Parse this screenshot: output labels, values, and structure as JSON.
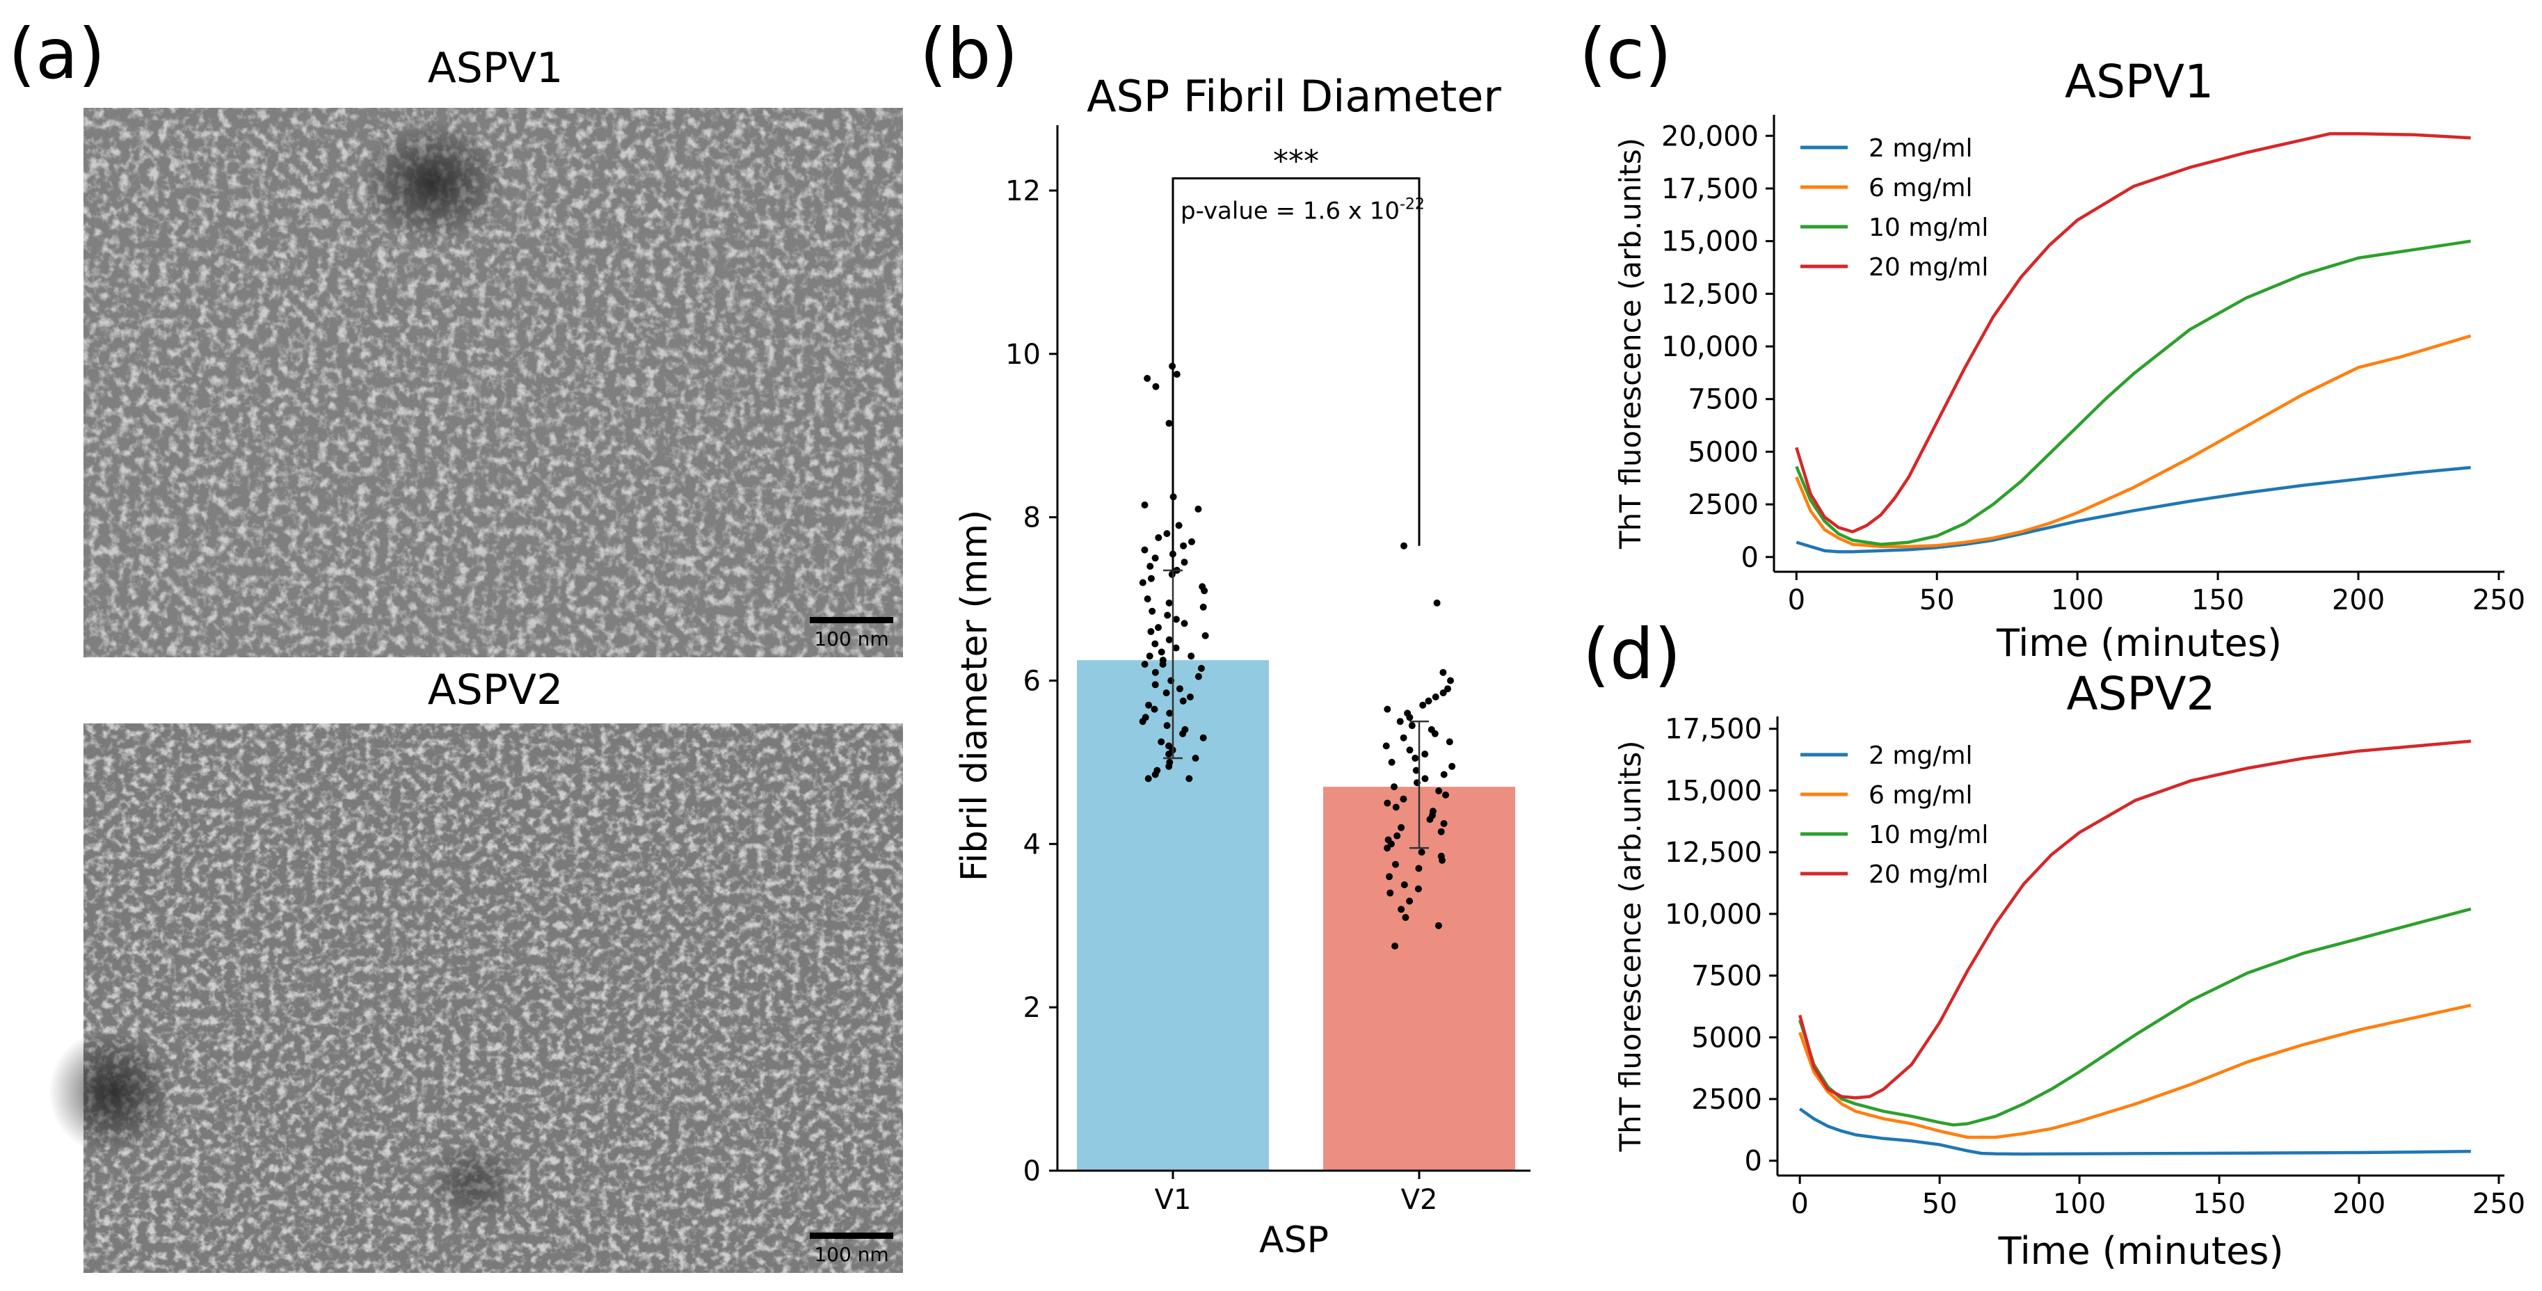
{
  "panels": {
    "a": {
      "letter": "(a)",
      "top": {
        "title": "ASPV1",
        "scale_bar": "100 nm"
      },
      "bottom": {
        "title": "ASPV2",
        "scale_bar": "100 nm"
      }
    },
    "b": {
      "letter": "(b)"
    },
    "c": {
      "letter": "(c)"
    },
    "d": {
      "letter": "(d)"
    }
  },
  "chart_data": [
    {
      "id": "b",
      "type": "bar",
      "title": "ASP Fibril Diameter",
      "xlabel": "ASP",
      "ylabel": "Fibril diameter (mm)",
      "categories": [
        "V1",
        "V2"
      ],
      "values": [
        6.25,
        4.7
      ],
      "colors": [
        "#92cbe1",
        "#ec8f80"
      ],
      "error_bars": [
        [
          5.05,
          7.35
        ],
        [
          3.95,
          5.5
        ]
      ],
      "ylim": [
        0,
        12.8
      ],
      "yticks": [
        0,
        2,
        4,
        6,
        8,
        10,
        12
      ],
      "significance": {
        "label": "***",
        "p_prefix": "p-value = 1.6 x 10",
        "p_exponent": "-22",
        "bracket_top": 12.15,
        "left_end": 7.35,
        "right_end": 7.65
      },
      "points": {
        "V1": [
          9.85,
          9.75,
          9.7,
          9.6,
          9.15,
          8.25,
          8.15,
          8.1,
          7.9,
          7.8,
          7.75,
          7.7,
          7.65,
          7.6,
          7.55,
          7.5,
          7.45,
          7.4,
          7.35,
          7.3,
          7.25,
          7.2,
          7.15,
          7.1,
          7.0,
          6.95,
          6.9,
          6.85,
          6.8,
          6.75,
          6.7,
          6.65,
          6.6,
          6.55,
          6.5,
          6.45,
          6.4,
          6.35,
          6.3,
          6.3,
          6.25,
          6.2,
          6.2,
          6.15,
          6.1,
          6.05,
          6.0,
          5.95,
          5.9,
          5.85,
          5.8,
          5.75,
          5.7,
          5.65,
          5.6,
          5.55,
          5.5,
          5.45,
          5.4,
          5.35,
          5.3,
          5.25,
          5.2,
          5.15,
          5.1,
          5.05,
          5.0,
          4.95,
          4.9,
          4.85,
          4.8,
          4.8
        ],
        "V2": [
          7.65,
          6.95,
          6.1,
          6.0,
          5.9,
          5.85,
          5.8,
          5.75,
          5.7,
          5.65,
          5.6,
          5.55,
          5.5,
          5.45,
          5.4,
          5.35,
          5.3,
          5.25,
          5.2,
          5.15,
          5.1,
          5.05,
          5.0,
          4.95,
          4.9,
          4.85,
          4.8,
          4.75,
          4.7,
          4.65,
          4.6,
          4.55,
          4.5,
          4.45,
          4.4,
          4.35,
          4.3,
          4.25,
          4.2,
          4.15,
          4.1,
          4.05,
          4.0,
          3.95,
          3.9,
          3.85,
          3.8,
          3.75,
          3.7,
          3.6,
          3.5,
          3.45,
          3.4,
          3.3,
          3.2,
          3.1,
          3.0,
          2.75
        ]
      }
    },
    {
      "id": "c",
      "type": "line",
      "title": "ASPV1",
      "xlabel": "Time (minutes)",
      "ylabel": "ThT fluorescence (arb.units)",
      "xlim": [
        -8,
        252
      ],
      "ylim": [
        -700,
        21000
      ],
      "xticks": [
        0,
        50,
        100,
        150,
        200,
        250
      ],
      "yticks": [
        0,
        2500,
        5000,
        7500,
        10000,
        12500,
        15000,
        17500,
        20000
      ],
      "ytick_labels": [
        "0",
        "2500",
        "5000",
        "7500",
        "10,000",
        "12,500",
        "15,000",
        "17,500",
        "20,000"
      ],
      "legend": "top-left",
      "series": [
        {
          "name": "2 mg/ml",
          "color": "#1f77b4",
          "x": [
            0,
            5,
            10,
            15,
            20,
            30,
            40,
            50,
            60,
            70,
            80,
            90,
            100,
            120,
            140,
            160,
            180,
            200,
            220,
            240
          ],
          "y": [
            700,
            500,
            300,
            250,
            250,
            300,
            350,
            450,
            600,
            800,
            1100,
            1400,
            1700,
            2200,
            2650,
            3050,
            3400,
            3700,
            4000,
            4250
          ]
        },
        {
          "name": "6 mg/ml",
          "color": "#ff7f0e",
          "x": [
            0,
            5,
            10,
            15,
            20,
            30,
            40,
            50,
            60,
            70,
            80,
            90,
            100,
            120,
            140,
            160,
            180,
            200,
            215,
            220,
            240
          ],
          "y": [
            3800,
            2200,
            1300,
            900,
            600,
            500,
            500,
            550,
            700,
            900,
            1200,
            1600,
            2100,
            3300,
            4700,
            6200,
            7700,
            9000,
            9500,
            9700,
            10500
          ]
        },
        {
          "name": "10 mg/ml",
          "color": "#2ca02c",
          "x": [
            0,
            5,
            10,
            15,
            20,
            30,
            40,
            50,
            60,
            70,
            80,
            90,
            100,
            110,
            120,
            140,
            160,
            180,
            200,
            220,
            240
          ],
          "y": [
            4300,
            2700,
            1700,
            1100,
            800,
            600,
            700,
            1000,
            1600,
            2500,
            3600,
            4900,
            6200,
            7500,
            8700,
            10800,
            12300,
            13400,
            14200,
            14600,
            15000
          ]
        },
        {
          "name": "20 mg/ml",
          "color": "#d62728",
          "x": [
            0,
            5,
            10,
            15,
            20,
            25,
            30,
            35,
            40,
            50,
            60,
            70,
            80,
            90,
            100,
            120,
            140,
            160,
            180,
            190,
            200,
            220,
            240
          ],
          "y": [
            5200,
            3000,
            1900,
            1400,
            1200,
            1500,
            2000,
            2800,
            3800,
            6400,
            9000,
            11400,
            13300,
            14800,
            16000,
            17600,
            18500,
            19200,
            19800,
            20100,
            20100,
            20050,
            19900
          ]
        }
      ]
    },
    {
      "id": "d",
      "type": "line",
      "title": "ASPV2",
      "xlabel": "Time (minutes)",
      "ylabel": "ThT fluorescence (arb.units)",
      "xlim": [
        -8,
        252
      ],
      "ylim": [
        -600,
        18000
      ],
      "xticks": [
        0,
        50,
        100,
        150,
        200,
        250
      ],
      "yticks": [
        0,
        2500,
        5000,
        7500,
        10000,
        12500,
        15000,
        17500
      ],
      "ytick_labels": [
        "0",
        "2500",
        "5000",
        "7500",
        "10,000",
        "12,500",
        "15,000",
        "17,500"
      ],
      "legend": "top-left",
      "series": [
        {
          "name": "2 mg/ml",
          "color": "#1f77b4",
          "x": [
            0,
            5,
            10,
            15,
            20,
            30,
            40,
            50,
            60,
            65,
            70,
            80,
            100,
            120,
            140,
            160,
            180,
            200,
            220,
            240
          ],
          "y": [
            2100,
            1700,
            1400,
            1200,
            1050,
            900,
            800,
            650,
            400,
            300,
            280,
            270,
            280,
            290,
            300,
            310,
            320,
            330,
            350,
            380
          ]
        },
        {
          "name": "6 mg/ml",
          "color": "#ff7f0e",
          "x": [
            0,
            5,
            10,
            15,
            20,
            30,
            40,
            50,
            60,
            70,
            80,
            90,
            100,
            120,
            140,
            160,
            180,
            200,
            220,
            240
          ],
          "y": [
            5200,
            3600,
            2800,
            2300,
            2000,
            1700,
            1500,
            1200,
            950,
            950,
            1100,
            1300,
            1600,
            2300,
            3100,
            4000,
            4700,
            5300,
            5800,
            6300
          ]
        },
        {
          "name": "10 mg/ml",
          "color": "#2ca02c",
          "x": [
            0,
            5,
            10,
            15,
            20,
            30,
            40,
            50,
            55,
            60,
            70,
            80,
            90,
            100,
            120,
            140,
            160,
            180,
            200,
            220,
            240
          ],
          "y": [
            5700,
            3900,
            3000,
            2500,
            2300,
            2000,
            1800,
            1550,
            1450,
            1500,
            1800,
            2300,
            2900,
            3600,
            5100,
            6500,
            7600,
            8400,
            9000,
            9600,
            10200
          ]
        },
        {
          "name": "20 mg/ml",
          "color": "#d62728",
          "x": [
            0,
            5,
            10,
            15,
            20,
            25,
            30,
            40,
            50,
            60,
            70,
            80,
            90,
            100,
            120,
            140,
            160,
            180,
            200,
            220,
            240
          ],
          "y": [
            5900,
            3800,
            2900,
            2600,
            2550,
            2600,
            2900,
            3900,
            5600,
            7700,
            9600,
            11200,
            12400,
            13300,
            14600,
            15400,
            15900,
            16300,
            16600,
            16800,
            17000
          ]
        }
      ]
    }
  ]
}
